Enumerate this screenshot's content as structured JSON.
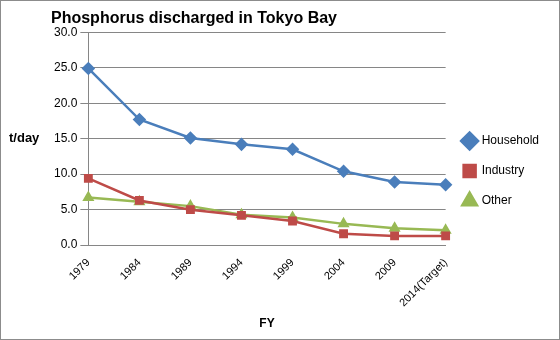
{
  "chart_data": {
    "type": "line",
    "title": "Phosphorus discharged in Tokyo Bay",
    "x_label": "FY",
    "y_label": "t/day",
    "categories": [
      "1979",
      "1984",
      "1989",
      "1994",
      "1999",
      "2004",
      "2009",
      "2014(Target)"
    ],
    "series": [
      {
        "name": "Household",
        "color": "#4a7ebb",
        "marker": "diamond",
        "values": [
          24.9,
          17.7,
          15.1,
          14.2,
          13.5,
          10.4,
          8.9,
          8.5
        ]
      },
      {
        "name": "Industry",
        "color": "#be4b48",
        "marker": "square",
        "values": [
          9.4,
          6.3,
          5.0,
          4.2,
          3.4,
          1.6,
          1.3,
          1.3
        ]
      },
      {
        "name": "Other",
        "color": "#98b954",
        "marker": "triangle",
        "values": [
          6.7,
          6.1,
          5.5,
          4.3,
          3.9,
          3.0,
          2.4,
          2.1
        ]
      }
    ],
    "ylim": [
      0,
      30
    ],
    "yticks": [
      {
        "value": 0,
        "label": "0.0"
      },
      {
        "value": 5,
        "label": "5.0"
      },
      {
        "value": 10,
        "label": "10.0"
      },
      {
        "value": 15,
        "label": "15.0"
      },
      {
        "value": 20,
        "label": "20.0"
      },
      {
        "value": 25,
        "label": "25.0"
      },
      {
        "value": 30,
        "label": "30.0"
      }
    ],
    "grid": true,
    "legend": "right"
  }
}
